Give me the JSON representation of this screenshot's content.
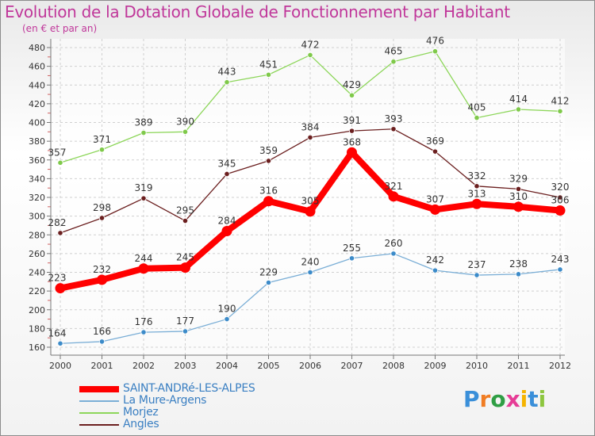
{
  "title": "Evolution de la Dotation Globale de Fonctionnement par Habitant",
  "subtitle": "(en € et par an)",
  "logo": {
    "text": "Proxiti"
  },
  "colors": {
    "title": "#c0379a",
    "grid": "#d0d0d0",
    "axis": "#777777",
    "legend_text": "#3a7fc2"
  },
  "chart_data": {
    "type": "line",
    "x": [
      "2000",
      "2001",
      "2002",
      "2003",
      "2004",
      "2005",
      "2006",
      "2007",
      "2008",
      "2009",
      "2010",
      "2011",
      "2012"
    ],
    "ylim": [
      160,
      480
    ],
    "yticks": [
      160,
      180,
      200,
      220,
      240,
      260,
      280,
      300,
      320,
      340,
      360,
      380,
      400,
      420,
      440,
      460,
      480
    ],
    "grid": true,
    "legend_position": "bottom-left",
    "series": [
      {
        "name": "SAINT-ANDRé-LES-ALPES",
        "color": "#ff0000",
        "marker_color": "#ff0000",
        "values": [
          223,
          232,
          244,
          245,
          284,
          316,
          305,
          368,
          321,
          307,
          313,
          310,
          306
        ]
      },
      {
        "name": "La Mure-Argens",
        "color": "#7aaed6",
        "marker_color": "#3c8bc9",
        "values": [
          164,
          166,
          176,
          177,
          190,
          229,
          240,
          255,
          260,
          242,
          237,
          238,
          243
        ]
      },
      {
        "name": "Morjez",
        "color": "#8dd65a",
        "marker_color": "#7fc94a",
        "values": [
          357,
          371,
          389,
          390,
          443,
          451,
          472,
          429,
          465,
          476,
          405,
          414,
          412
        ]
      },
      {
        "name": "Angles",
        "color": "#6b1f1f",
        "marker_color": "#6b1f1f",
        "values": [
          282,
          298,
          319,
          295,
          345,
          359,
          384,
          391,
          393,
          369,
          332,
          329,
          320
        ]
      }
    ]
  }
}
